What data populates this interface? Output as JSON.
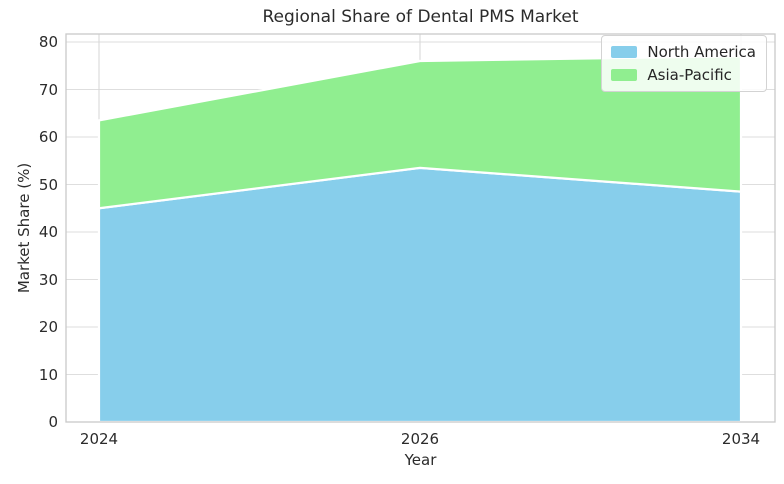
{
  "chart_data": {
    "type": "area",
    "stacked": true,
    "title": "Regional Share of Dental PMS Market",
    "xlabel": "Year",
    "ylabel": "Market Share (%)",
    "categories": [
      "2024",
      "2026",
      "2034"
    ],
    "series": [
      {
        "name": "North America",
        "values": [
          45,
          53.5,
          48.5
        ],
        "color": "#87CEEB"
      },
      {
        "name": "Asia-Pacific",
        "values": [
          18.5,
          22.5,
          28.5
        ],
        "color": "#90EE90"
      }
    ],
    "stack_totals": [
      63.5,
      76,
      77
    ],
    "ylim": [
      0,
      80
    ],
    "yticks": [
      0,
      10,
      20,
      30,
      40,
      50,
      60,
      70,
      80
    ],
    "grid": true,
    "legend_position": "upper right",
    "area_edge_color": "#ffffff"
  }
}
